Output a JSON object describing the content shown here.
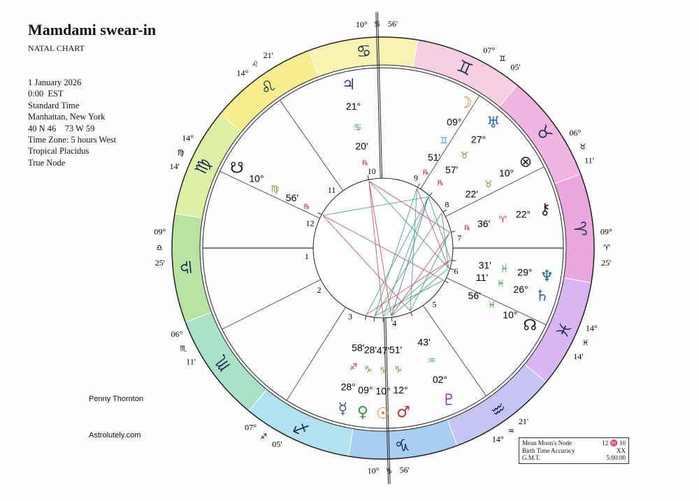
{
  "header": {
    "title": "Mamdami swear-in",
    "subtitle": "NATAL CHART",
    "lines": [
      "1 January 2026",
      "0:00  EST",
      "Standard Time",
      "Manhattan, New York",
      "40 N 46    73 W 59",
      "Time Zone: 5 hours West",
      "Tropical Placidus",
      "True Node"
    ]
  },
  "credits": {
    "author": "Penny Thornton",
    "site": "Astrolutely.com"
  },
  "info_box": {
    "rows": [
      [
        "Mean Moon's Node",
        "12 ♓ 10"
      ],
      [
        "Birth Time Accuracy",
        "XX"
      ],
      [
        "G.M.T.",
        "5:00:00"
      ]
    ]
  },
  "wheel": {
    "signs": [
      {
        "glyph": "♈",
        "color": "#eaa6de"
      },
      {
        "glyph": "♉",
        "color": "#f0b6e2"
      },
      {
        "glyph": "♊",
        "color": "#f7cfe3"
      },
      {
        "glyph": "♋",
        "color": "#f8f3b2"
      },
      {
        "glyph": "♌",
        "color": "#f6ee8e"
      },
      {
        "glyph": "♍",
        "color": "#def0a4"
      },
      {
        "glyph": "♎",
        "color": "#b8e3a2"
      },
      {
        "glyph": "♏",
        "color": "#a8e2c8"
      },
      {
        "glyph": "♐",
        "color": "#b0e2f0"
      },
      {
        "glyph": "♑",
        "color": "#a8cef2"
      },
      {
        "glyph": "♒",
        "color": "#c6c4f2"
      },
      {
        "glyph": "♓",
        "color": "#d8b6f2"
      }
    ],
    "cusps": [
      {
        "house": "1",
        "degree": "09°",
        "sign": "♎",
        "minutes": "25'"
      },
      {
        "house": "2",
        "degree": "06°",
        "sign": "♏",
        "minutes": "11'"
      },
      {
        "house": "3",
        "degree": "07°",
        "sign": "♐",
        "minutes": "05'"
      },
      {
        "house": "4",
        "degree": "10°",
        "sign": "♑",
        "minutes": "56'"
      },
      {
        "house": "5",
        "degree": "14°",
        "sign": "♒",
        "minutes": "21'"
      },
      {
        "house": "6",
        "degree": "14°",
        "sign": "♓",
        "minutes": "14'"
      },
      {
        "house": "7",
        "degree": "09°",
        "sign": "♈",
        "minutes": "25'"
      },
      {
        "house": "8",
        "degree": "06°",
        "sign": "♉",
        "minutes": "11'"
      },
      {
        "house": "9",
        "degree": "07°",
        "sign": "♊",
        "minutes": "05'"
      },
      {
        "house": "10",
        "degree": "10°",
        "sign": "♋",
        "minutes": "56'"
      },
      {
        "house": "11",
        "degree": "14°",
        "sign": "♌",
        "minutes": "21'"
      },
      {
        "house": "12",
        "degree": "14°",
        "sign": "♍",
        "minutes": "14'"
      }
    ],
    "planets": [
      {
        "glyph": "♃",
        "degree": "21°",
        "sign": "♋",
        "minutes": "20'",
        "retro": "℞",
        "color": "#3a3aa8"
      },
      {
        "glyph": "☽",
        "degree": "09°",
        "sign": "♊",
        "minutes": "51'",
        "retro": "℞",
        "color": "#d07a30"
      },
      {
        "glyph": "♅",
        "degree": "27°",
        "sign": "♉",
        "minutes": "57'",
        "retro": "℞",
        "color": "#2a6ab0"
      },
      {
        "glyph": "⊗",
        "degree": "10°",
        "sign": "♉",
        "minutes": "22'",
        "color": "#222222"
      },
      {
        "glyph": "⚷",
        "degree": "22°",
        "sign": "♈",
        "minutes": "36'",
        "retro": "℞",
        "color": "#222222"
      },
      {
        "glyph": "♆",
        "degree": "29°",
        "sign": "♓",
        "minutes": "31'",
        "color": "#1a6a7a"
      },
      {
        "glyph": "♄",
        "degree": "26°",
        "sign": "♓",
        "minutes": "11'",
        "color": "#2a6ab0"
      },
      {
        "glyph": "☊",
        "degree": "10°",
        "sign": "♓",
        "minutes": "56'",
        "color": "#222222"
      },
      {
        "glyph": "♇",
        "degree": "02°",
        "sign": "♒",
        "minutes": "43'",
        "color": "#8a3aa0"
      },
      {
        "glyph": "♂",
        "degree": "12°",
        "sign": "♑",
        "minutes": "51'",
        "color": "#c03040"
      },
      {
        "glyph": "☉",
        "degree": "10°",
        "sign": "♑",
        "minutes": "47'",
        "color": "#d07a30"
      },
      {
        "glyph": "♀",
        "degree": "09°",
        "sign": "♑",
        "minutes": "28'",
        "color": "#3a9a40"
      },
      {
        "glyph": "☿",
        "degree": "28°",
        "sign": "♐",
        "minutes": "58'",
        "color": "#3a5ab0"
      },
      {
        "glyph": "☋",
        "degree": "10°",
        "sign": "♍",
        "minutes": "56'",
        "retro": "℞",
        "color": "#222222"
      }
    ]
  }
}
